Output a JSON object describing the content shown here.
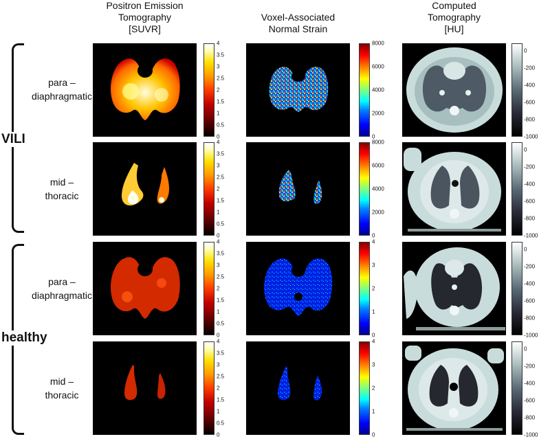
{
  "columns": [
    {
      "lines": [
        "Positron Emission",
        "Tomography",
        "[SUVR]"
      ]
    },
    {
      "lines": [
        "Voxel-Associated",
        "Normal Strain"
      ]
    },
    {
      "lines": [
        "Computed",
        "Tomography",
        "[HU]"
      ]
    }
  ],
  "groups": {
    "vili": "VILI",
    "healthy": "healthy"
  },
  "rows": [
    {
      "line1": "para –",
      "line2": "diaphragmatic"
    },
    {
      "line1": "mid –",
      "line2": "thoracic"
    },
    {
      "line1": "para –",
      "line2": "diaphragmatic"
    },
    {
      "line1": "mid –",
      "line2": "thoracic"
    }
  ],
  "colorbars": {
    "pet_ticks": [
      "4",
      "3.5",
      "3",
      "2.5",
      "2",
      "1.5",
      "1",
      "0.5",
      "0"
    ],
    "strain_vili_ticks": [
      "8000",
      "6000",
      "4000",
      "2000",
      "0"
    ],
    "strain_healthy_ticks": [
      "4",
      "3",
      "2",
      "1",
      "0"
    ],
    "ct_ticks": [
      "0",
      "-200",
      "-400",
      "-600",
      "-800",
      "-1000"
    ]
  },
  "colors": {
    "pet_map": "hot",
    "strain_map": "jet",
    "ct_map": "bone"
  }
}
